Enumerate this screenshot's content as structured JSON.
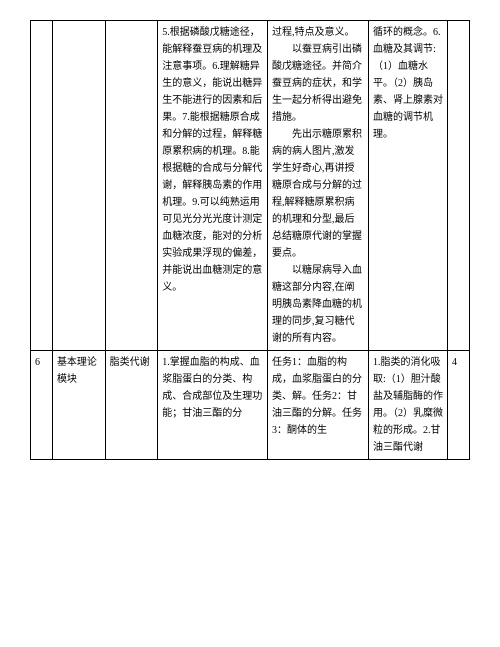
{
  "rows": [
    {
      "c1": "",
      "c2": "",
      "c3": "",
      "c4": "5.根据磷酸戊糖途径，能解释蚕豆病的机理及注意事项。6.理解糖异生的意义，能说出糖异生不能进行的因素和后果。7.能根据糖原合成和分解的过程，解释糖原累积病的机理。8.能根据糖的合成与分解代谢，解释胰岛素的作用机理。9.可以纯熟运用可见光分光光度计测定血糖浓度，能对的分析实验成果浮现的偏差，并能说出血糖测定的意义。",
      "c5": "过程,特点及意义。\n　以蚕豆病引出磷酸戊糖途径。并简介蚕豆病的症状，和学生一起分析得出避免措施。\n　先出示糖原累积病的病人图片,激发学生好奇心,再讲授糖原合成与分解的过程,解释糖原累积病的机理和分型,最后总结糖原代谢的掌握要点。\n　以糖尿病导入血糖这部分内容,在阐明胰岛素降血糖的机理的同步,复习糖代谢的所有内容。",
      "c6": "循环的概念。6.血糖及其调节:（1）血糖水平。（2）胰岛素、肾上腺素对血糖的调节机理。",
      "c7": ""
    },
    {
      "c1": "6",
      "c2": "基本理论模块",
      "c3": "脂类代谢",
      "c4": "1.掌握血脂的构成、血浆脂蛋白的分类、构成、合成部位及生理功能；甘油三酯的分",
      "c5": "任务1：血脂的构成，血浆脂蛋白的分类、解。任务2：甘油三酯的分解。任务3：酮体的生",
      "c6": "1.脂类的消化吸取:（1）胆汁酸盐及辅脂酶的作用。（2）乳糜微粒的形成。2.甘油三酯代谢",
      "c7": "4"
    }
  ]
}
